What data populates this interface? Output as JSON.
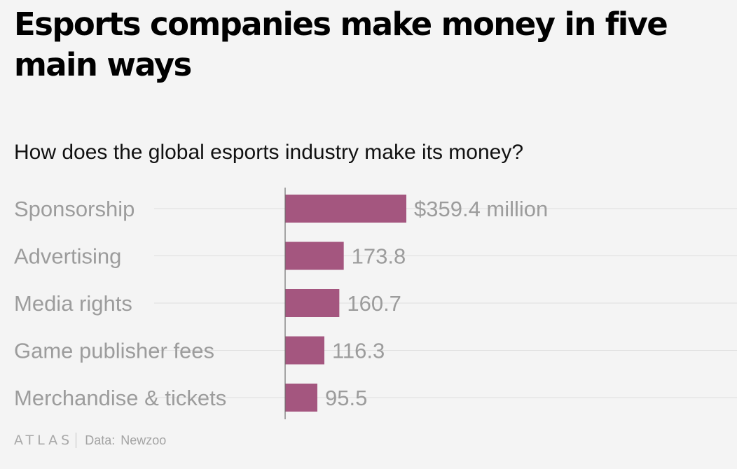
{
  "title": "Esports companies make money in five main ways",
  "subtitle": "How does the global esports industry make its money?",
  "footer": {
    "logo": "ATLAS",
    "source_label": "Data:",
    "source_value": "Newzoo"
  },
  "colors": {
    "bar": "#a4567f",
    "category_text": "#9c9c9c",
    "value_text": "#9c9c9c",
    "gridline": "#dedede",
    "axis": "#6e6e6e"
  },
  "chart_data": {
    "type": "bar",
    "orientation": "horizontal",
    "categories": [
      "Sponsorship",
      "Advertising",
      "Media rights",
      "Game publisher fees",
      "Merchandise & tickets"
    ],
    "values": [
      359.4,
      173.8,
      160.7,
      116.3,
      95.5
    ],
    "value_labels": [
      "$359.4 million",
      "173.8",
      "160.7",
      "116.3",
      "95.5"
    ],
    "unit": "million USD",
    "grid": true,
    "legend": "none"
  }
}
